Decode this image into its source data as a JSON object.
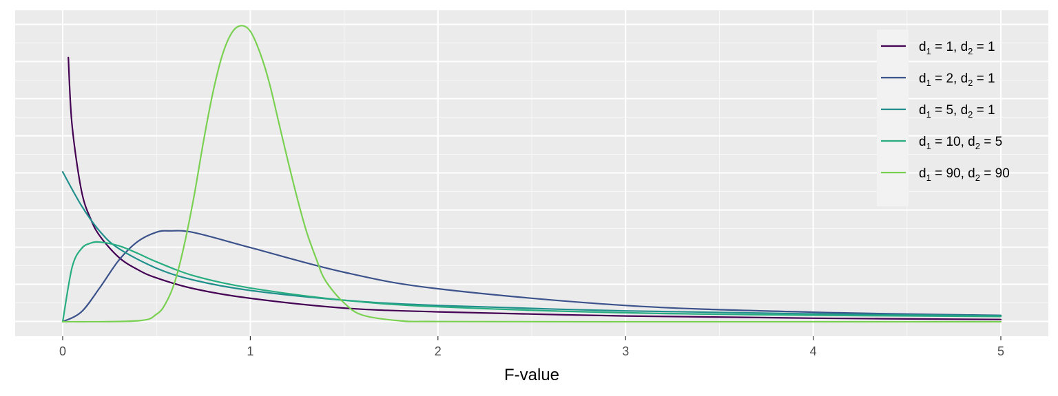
{
  "chart_data": {
    "type": "line",
    "xlabel": "F-value",
    "ylabel": "",
    "xlim": [
      0,
      5
    ],
    "ylim": [
      0,
      1.6
    ],
    "x_ticks": [
      "0",
      "1",
      "2",
      "3",
      "4",
      "5"
    ],
    "y_ticks_labeled": false,
    "grid": true,
    "legend_position": "top-right",
    "background": "#EBEBEB",
    "series": [
      {
        "name": "d1 = 1, d2 = 1",
        "label": {
          "a": "1",
          "b": "1"
        },
        "d1": 1,
        "d2": 1,
        "color": "#440154",
        "x": [
          0.03,
          0.05,
          0.1,
          0.15,
          0.2,
          0.3,
          0.4,
          0.5,
          0.7,
          1.0,
          1.5,
          2.0,
          3.0,
          4.0,
          5.0
        ],
        "y": [
          1.41,
          1.05,
          0.7,
          0.547,
          0.455,
          0.343,
          0.278,
          0.234,
          0.176,
          0.125,
          0.073,
          0.053,
          0.031,
          0.019,
          0.012
        ]
      },
      {
        "name": "d1 = 2, d2 = 1",
        "label": {
          "a": "2",
          "b": "1"
        },
        "d1": 2,
        "d2": 1,
        "color": "#3B528B",
        "x": [
          0,
          0.1,
          0.2,
          0.3,
          0.4,
          0.5,
          0.57,
          0.7,
          1.0,
          1.5,
          2.0,
          3.0,
          4.0,
          5.0
        ],
        "y": [
          0,
          0.053,
          0.185,
          0.329,
          0.428,
          0.478,
          0.485,
          0.476,
          0.396,
          0.264,
          0.176,
          0.087,
          0.051,
          0.034
        ]
      },
      {
        "name": "d1 = 5, d2 = 1",
        "label": {
          "a": "5",
          "b": "1"
        },
        "d1": 5,
        "d2": 1,
        "color": "#21908C",
        "x": [
          0,
          0.1,
          0.2,
          0.3,
          0.5,
          0.7,
          1.0,
          1.5,
          2.0,
          3.0,
          4.0,
          5.0
        ],
        "y": [
          0.8,
          0.62,
          0.48,
          0.39,
          0.286,
          0.222,
          0.167,
          0.115,
          0.087,
          0.058,
          0.042,
          0.033
        ]
      },
      {
        "name": "d1 = 10, d2 = 5",
        "label": {
          "a": "10",
          "b": "5"
        },
        "d1": 10,
        "d2": 5,
        "color": "#27AD81",
        "x": [
          0,
          0.05,
          0.1,
          0.15,
          0.2,
          0.3,
          0.4,
          0.5,
          0.7,
          1.0,
          1.5,
          2.0,
          3.0,
          4.0,
          5.0
        ],
        "y": [
          0,
          0.29,
          0.39,
          0.42,
          0.425,
          0.405,
          0.365,
          0.32,
          0.245,
          0.18,
          0.115,
          0.08,
          0.048,
          0.035,
          0.028
        ]
      },
      {
        "name": "d1 = 90, d2 = 90",
        "label": {
          "a": "90",
          "b": "90"
        },
        "d1": 90,
        "d2": 90,
        "color": "#7AD151",
        "x": [
          0,
          0.4,
          0.5,
          0.55,
          0.6,
          0.65,
          0.7,
          0.75,
          0.8,
          0.85,
          0.9,
          0.95,
          1.0,
          1.05,
          1.1,
          1.15,
          1.2,
          1.25,
          1.3,
          1.35,
          1.4,
          1.5,
          1.6,
          1.8,
          2.0,
          3.0,
          5.0
        ],
        "y": [
          0,
          0.005,
          0.04,
          0.1,
          0.22,
          0.42,
          0.67,
          0.96,
          1.22,
          1.42,
          1.54,
          1.58,
          1.55,
          1.44,
          1.28,
          1.07,
          0.86,
          0.66,
          0.48,
          0.34,
          0.22,
          0.1,
          0.035,
          0.005,
          0.001,
          0,
          0
        ]
      }
    ]
  }
}
